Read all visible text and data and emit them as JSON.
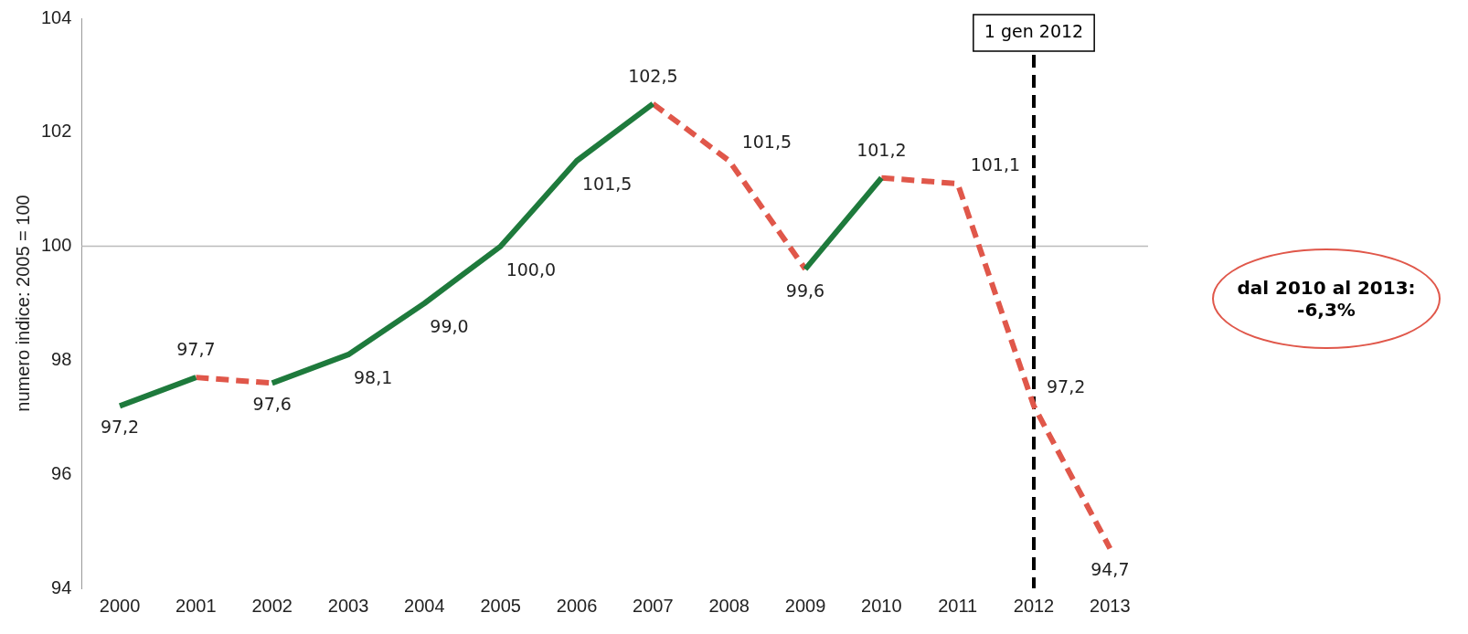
{
  "chart_data": {
    "type": "line",
    "ylabel": "numero indice: 2005 = 100",
    "categories": [
      "2000",
      "2001",
      "2002",
      "2003",
      "2004",
      "2005",
      "2006",
      "2007",
      "2008",
      "2009",
      "2010",
      "2011",
      "2012",
      "2013"
    ],
    "series": [
      {
        "color": "#1e7a3c",
        "line_style": "solid",
        "values": [
          97.2,
          97.7,
          null,
          null,
          null,
          null,
          null,
          null,
          null,
          99.6,
          101.2,
          null,
          null,
          null
        ],
        "value_labels": [
          "97,2",
          "97,7",
          null,
          null,
          null,
          null,
          null,
          null,
          null,
          "99,6",
          "101,2",
          null,
          null,
          null
        ]
      },
      {
        "color": "#1e7a3c",
        "line_style": "solid",
        "values": [
          null,
          null,
          97.6,
          98.1,
          99.0,
          100.0,
          101.5,
          102.5,
          null,
          null,
          null,
          null,
          null,
          null
        ],
        "value_labels": [
          null,
          null,
          "97,6",
          "98,1",
          "99,0",
          "100,0",
          "101,5",
          "102,5",
          null,
          null,
          null,
          null,
          null,
          null
        ]
      },
      {
        "color": "#e0574a",
        "line_style": "dashed",
        "values": [
          null,
          97.7,
          97.6,
          null,
          null,
          null,
          null,
          102.5,
          101.5,
          99.6,
          null,
          null,
          null,
          null
        ],
        "value_labels": [
          null,
          null,
          null,
          null,
          null,
          null,
          null,
          null,
          "101,5",
          null,
          null,
          null,
          null,
          null
        ]
      },
      {
        "color": "#e0574a",
        "line_style": "dashed",
        "values": [
          null,
          null,
          null,
          null,
          null,
          null,
          null,
          null,
          null,
          null,
          101.2,
          101.1,
          97.2,
          94.7
        ],
        "value_labels": [
          null,
          null,
          null,
          null,
          null,
          null,
          null,
          null,
          null,
          null,
          null,
          "101,1",
          "97,2",
          "94,7"
        ]
      }
    ],
    "ylim": [
      94,
      104
    ],
    "yticks": [
      94,
      96,
      98,
      100,
      102,
      104
    ],
    "grid": false,
    "legend": false,
    "marker": "none",
    "ref_lines": [
      {
        "axis": "y",
        "value": 100,
        "color": "#bbbbbb",
        "line_style": "solid"
      },
      {
        "axis": "x",
        "value": "2012",
        "label": "1 gen 2012",
        "color": "#000000",
        "line_style": "dashed"
      }
    ],
    "annotations": [
      "dal 2010 al 2013: -6,3%"
    ]
  }
}
